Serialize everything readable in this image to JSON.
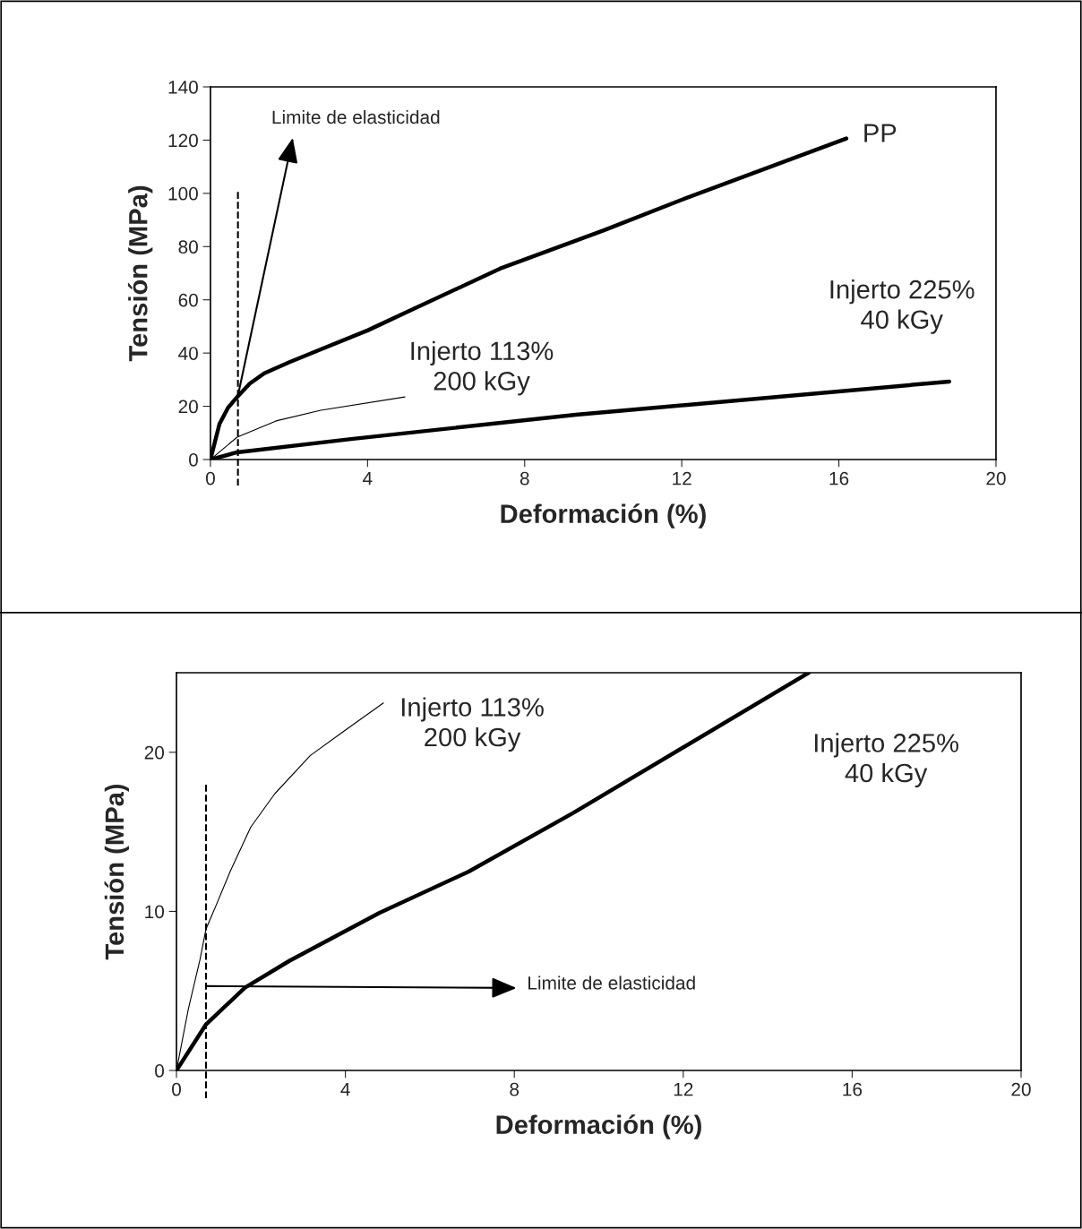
{
  "chart_data": [
    {
      "type": "line",
      "xlabel": "Deformación (%)",
      "ylabel": "Tensión (MPa)",
      "xlim": [
        0,
        20
      ],
      "ylim": [
        0,
        140
      ],
      "xticks": [
        0,
        4,
        8,
        12,
        16,
        20
      ],
      "yticks": [
        0,
        20,
        40,
        60,
        80,
        100,
        120,
        140
      ],
      "grid": false,
      "legend": false,
      "marker": "none",
      "line_style": "solid",
      "series": [
        {
          "name": "PP",
          "color": "#000000",
          "x": [
            0,
            0.23,
            0.45,
            0.68,
            1.0,
            1.37,
            2.0,
            2.81,
            4.0,
            5.09,
            7.37,
            10,
            12,
            16.19
          ],
          "values": [
            0,
            13.4,
            19.5,
            23.5,
            28.5,
            32.4,
            36.5,
            41.4,
            48.5,
            56,
            71.7,
            86,
            97.6,
            120.6
          ]
        },
        {
          "name": "Injerto 113%\n200 kGy",
          "color": "#000000",
          "x": [
            0,
            0.68,
            1.67,
            2.81,
            4.95
          ],
          "values": [
            0,
            8.4,
            14.5,
            18.5,
            23.5
          ]
        },
        {
          "name": "Injerto 225%\n40 kGy",
          "color": "#000000",
          "x": [
            0,
            0.68,
            3.58,
            9.3,
            18.81
          ],
          "values": [
            0,
            2.7,
            7.7,
            16.8,
            29.3
          ]
        }
      ],
      "ref_lines": [
        {
          "axis": "x",
          "value": 0.7,
          "line_style": "dashed",
          "color": "#000000"
        }
      ],
      "annotations": [
        {
          "text": "Limite de elasticidad",
          "x": 0.7,
          "y": 24
        }
      ]
    },
    {
      "type": "line",
      "xlabel": "Deformación (%)",
      "ylabel": "Tensión (MPa)",
      "xlim": [
        0,
        20
      ],
      "ylim": [
        0,
        25
      ],
      "xticks": [
        0,
        4,
        8,
        12,
        16,
        20
      ],
      "yticks": [
        0,
        10,
        20
      ],
      "grid": false,
      "legend": false,
      "marker": "none",
      "line_style": "solid",
      "series": [
        {
          "name": "Injerto 113%\n200 kGy",
          "color": "#000000",
          "x": [
            0,
            0.28,
            0.56,
            0.7,
            0.91,
            1.27,
            1.76,
            2.33,
            3.17,
            3.95,
            4.9
          ],
          "values": [
            0,
            3.85,
            7.0,
            8.9,
            10.2,
            12.5,
            15.3,
            17.4,
            19.8,
            21.3,
            23.1
          ]
        },
        {
          "name": "Injerto 225%\n40 kGy",
          "color": "#000000",
          "x": [
            0,
            0.7,
            1.62,
            2.68,
            4.8,
            6.92,
            9.4,
            14.97
          ],
          "values": [
            0,
            2.9,
            5.2,
            6.9,
            9.9,
            12.5,
            16.2,
            25
          ]
        }
      ],
      "ref_lines": [
        {
          "axis": "x",
          "value": 0.7,
          "line_style": "dashed",
          "color": "#000000"
        }
      ],
      "annotations": [
        {
          "text": "Limite de elasticidad",
          "x": 0.7,
          "y": 5.3
        }
      ]
    }
  ]
}
